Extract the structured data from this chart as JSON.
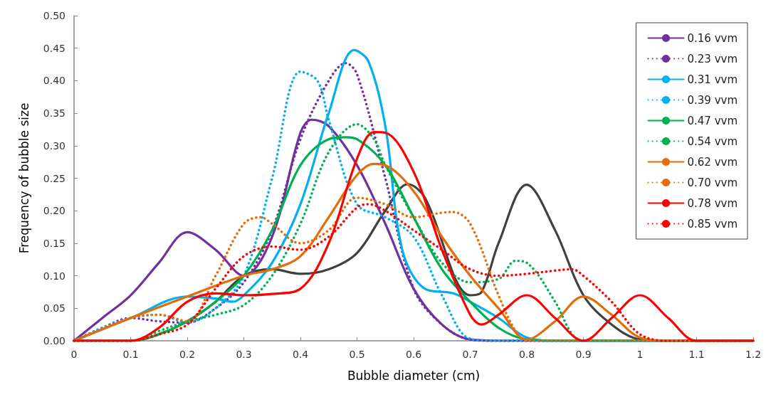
{
  "chart_data": {
    "type": "line",
    "xlabel": "Bubble diameter (cm)",
    "ylabel": "Frequency of bubble size",
    "xlim": [
      0,
      1.2
    ],
    "xticks": [
      0,
      0.1,
      0.2,
      0.3,
      0.4,
      0.5,
      0.6,
      0.7,
      0.8,
      0.9,
      1,
      1.1,
      1.2
    ],
    "ylim": [
      0,
      0.5
    ],
    "yticks": [
      {
        "value": 0,
        "label": "0.00"
      },
      {
        "value": 0.05,
        "label": "0.05"
      },
      {
        "value": 0.1,
        "label": "0.10"
      },
      {
        "value": 0.15,
        "label": "0.15"
      },
      {
        "value": 0.2,
        "label": "0.20"
      },
      {
        "value": 0.25,
        "label": "0.25"
      },
      {
        "value": 0.3,
        "label": "0.30"
      },
      {
        "value": 0.35,
        "label": "0.35"
      },
      {
        "value": 0.4,
        "label": "0.40"
      },
      {
        "value": 0.45,
        "label": "0.45"
      },
      {
        "value": 0.5,
        "label": "0.50"
      }
    ],
    "grid": false,
    "legend": "top right",
    "marker": "none",
    "series": [
      {
        "name": "0.16 vvm",
        "color": "#7030a0",
        "line_style": "solid",
        "x": [
          0,
          0.05,
          0.1,
          0.15,
          0.2,
          0.25,
          0.3,
          0.35,
          0.4,
          0.42,
          0.45,
          0.5,
          0.55,
          0.6,
          0.65,
          0.7,
          0.75,
          1.2
        ],
        "values": [
          0,
          0.035,
          0.07,
          0.12,
          0.167,
          0.14,
          0.1,
          0.16,
          0.32,
          0.34,
          0.33,
          0.27,
          0.18,
          0.08,
          0.025,
          0.002,
          0,
          0
        ]
      },
      {
        "name": "0.23 vvm",
        "color": "#7030a0",
        "line_style": "dotted",
        "x": [
          0,
          0.05,
          0.1,
          0.15,
          0.2,
          0.25,
          0.3,
          0.35,
          0.4,
          0.45,
          0.48,
          0.5,
          0.55,
          0.6,
          0.65,
          0.7,
          0.75,
          1.2
        ],
        "values": [
          0,
          0.02,
          0.035,
          0.03,
          0.028,
          0.05,
          0.09,
          0.17,
          0.31,
          0.4,
          0.427,
          0.41,
          0.25,
          0.08,
          0.025,
          0.002,
          0,
          0
        ]
      },
      {
        "name": "0.31 vvm",
        "color": "#00b0f0",
        "line_style": "solid",
        "x": [
          0,
          0.1,
          0.2,
          0.25,
          0.28,
          0.3,
          0.35,
          0.4,
          0.45,
          0.495,
          0.52,
          0.55,
          0.58,
          0.62,
          0.67,
          0.7,
          0.75,
          0.8,
          0.85,
          1.2
        ],
        "values": [
          0,
          0.035,
          0.068,
          0.065,
          0.06,
          0.07,
          0.12,
          0.21,
          0.35,
          0.447,
          0.43,
          0.33,
          0.14,
          0.08,
          0.073,
          0.06,
          0.035,
          0.005,
          0,
          0
        ]
      },
      {
        "name": "0.39 vvm",
        "color": "#00b0f0",
        "line_style": "dotted",
        "x": [
          0,
          0.05,
          0.1,
          0.15,
          0.2,
          0.25,
          0.3,
          0.35,
          0.4,
          0.43,
          0.45,
          0.5,
          0.55,
          0.6,
          0.65,
          0.7,
          0.75,
          1.2
        ],
        "values": [
          0,
          0.02,
          0.035,
          0.04,
          0.028,
          0.05,
          0.1,
          0.25,
          0.414,
          0.4,
          0.34,
          0.21,
          0.19,
          0.16,
          0.07,
          0.003,
          0,
          0
        ]
      },
      {
        "name": "0.47 vvm",
        "color": "#00b050",
        "line_style": "solid",
        "x": [
          0,
          0.1,
          0.15,
          0.2,
          0.25,
          0.3,
          0.35,
          0.4,
          0.45,
          0.48,
          0.5,
          0.55,
          0.6,
          0.65,
          0.7,
          0.75,
          0.8,
          0.85,
          1.2
        ],
        "values": [
          0,
          0,
          0.01,
          0.03,
          0.06,
          0.1,
          0.17,
          0.27,
          0.31,
          0.313,
          0.31,
          0.27,
          0.19,
          0.11,
          0.06,
          0.02,
          0.002,
          0,
          0
        ]
      },
      {
        "name": "0.54 vvm",
        "color": "#00b050",
        "line_style": "dotted",
        "x": [
          0,
          0.1,
          0.15,
          0.2,
          0.25,
          0.3,
          0.35,
          0.4,
          0.45,
          0.5,
          0.53,
          0.55,
          0.6,
          0.65,
          0.7,
          0.75,
          0.78,
          0.8,
          0.85,
          0.88,
          0.9,
          1.2
        ],
        "values": [
          0,
          0,
          0.015,
          0.03,
          0.04,
          0.055,
          0.1,
          0.18,
          0.29,
          0.333,
          0.31,
          0.27,
          0.19,
          0.12,
          0.09,
          0.095,
          0.123,
          0.12,
          0.06,
          0.01,
          0,
          0
        ]
      },
      {
        "name": "0.62 vvm",
        "color": "#e46c0a",
        "line_style": "solid",
        "x": [
          0,
          0.1,
          0.2,
          0.3,
          0.35,
          0.4,
          0.45,
          0.5,
          0.53,
          0.55,
          0.6,
          0.65,
          0.7,
          0.75,
          0.8,
          0.85,
          0.9,
          0.95,
          1.0,
          1.05,
          1.2
        ],
        "values": [
          0,
          0.035,
          0.068,
          0.1,
          0.11,
          0.13,
          0.19,
          0.255,
          0.272,
          0.27,
          0.23,
          0.16,
          0.1,
          0.05,
          0.002,
          0.03,
          0.068,
          0.04,
          0.005,
          0,
          0
        ]
      },
      {
        "name": "0.70 vvm",
        "color": "#e46c0a",
        "line_style": "dotted",
        "x": [
          0,
          0.1,
          0.15,
          0.2,
          0.25,
          0.3,
          0.33,
          0.35,
          0.4,
          0.45,
          0.5,
          0.55,
          0.6,
          0.65,
          0.67,
          0.7,
          0.75,
          0.78,
          0.8,
          1.2
        ],
        "values": [
          0,
          0.035,
          0.04,
          0.03,
          0.1,
          0.18,
          0.19,
          0.18,
          0.15,
          0.17,
          0.22,
          0.21,
          0.19,
          0.197,
          0.198,
          0.18,
          0.07,
          0.015,
          0,
          0
        ]
      },
      {
        "name": "0.78 vvm",
        "color": "#ff0000",
        "line_style": "solid",
        "x": [
          0,
          0.1,
          0.15,
          0.2,
          0.25,
          0.3,
          0.35,
          0.4,
          0.45,
          0.5,
          0.53,
          0.55,
          0.6,
          0.65,
          0.7,
          0.72,
          0.75,
          0.8,
          0.85,
          0.9,
          0.95,
          1.0,
          1.05,
          1.1,
          1.2
        ],
        "values": [
          0,
          0,
          0.02,
          0.06,
          0.073,
          0.07,
          0.072,
          0.08,
          0.15,
          0.28,
          0.321,
          0.32,
          0.26,
          0.14,
          0.04,
          0.025,
          0.04,
          0.07,
          0.035,
          0,
          0.035,
          0.07,
          0.035,
          0,
          0
        ]
      },
      {
        "name": "0.85 vvm",
        "color": "#ff0000",
        "line_style": "dotted",
        "x": [
          0,
          0.1,
          0.15,
          0.2,
          0.25,
          0.3,
          0.35,
          0.4,
          0.45,
          0.5,
          0.52,
          0.55,
          0.6,
          0.65,
          0.7,
          0.75,
          0.8,
          0.85,
          0.88,
          0.9,
          0.95,
          1.0,
          1.05,
          1.2
        ],
        "values": [
          0,
          0,
          0.01,
          0.025,
          0.08,
          0.13,
          0.145,
          0.14,
          0.16,
          0.205,
          0.21,
          0.2,
          0.17,
          0.14,
          0.11,
          0.1,
          0.103,
          0.108,
          0.11,
          0.1,
          0.06,
          0.01,
          0,
          0
        ]
      },
      {
        "color": "#404040",
        "line_style": "solid",
        "x": [
          0,
          0.1,
          0.15,
          0.2,
          0.25,
          0.3,
          0.35,
          0.4,
          0.45,
          0.5,
          0.55,
          0.59,
          0.62,
          0.7,
          0.72,
          0.75,
          0.8,
          0.85,
          0.9,
          0.95,
          1.0,
          1.05,
          1.2
        ],
        "values": [
          0,
          0,
          0.01,
          0.03,
          0.06,
          0.1,
          0.11,
          0.103,
          0.11,
          0.135,
          0.2,
          0.241,
          0.22,
          0.07,
          0.075,
          0.15,
          0.24,
          0.17,
          0.07,
          0.025,
          0.002,
          0,
          0
        ]
      }
    ]
  }
}
